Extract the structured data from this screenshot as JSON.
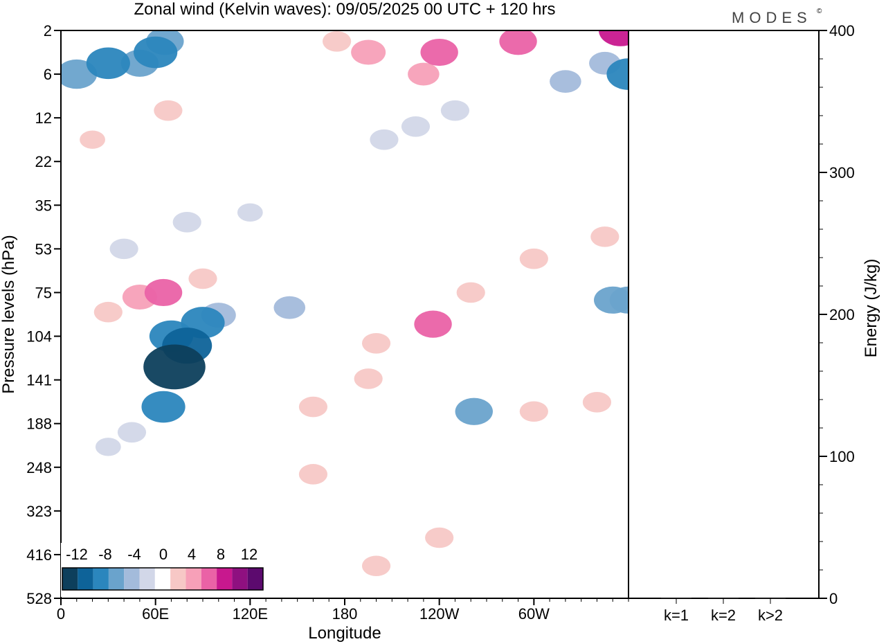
{
  "title": "Zonal wind (Kelvin waves):  09/05/2025  00 UTC  + 120 hrs",
  "brand": "MODES",
  "brand_mark": "©",
  "colors": {
    "neg": [
      "#0d3f5c",
      "#0e6399",
      "#2b86bd",
      "#6aa3cc",
      "#a3bbdb",
      "#d2d7e8"
    ],
    "zero": "#ffffff",
    "pos": [
      "#f7c8c6",
      "#f7a0b8",
      "#ea62a6",
      "#c8188e",
      "#8f1080",
      "#5c0a6e"
    ],
    "frame": "#000000"
  },
  "chart_data": [
    {
      "type": "heatmap",
      "title": "Zonal wind (Kelvin waves):  09/05/2025  00 UTC  + 120 hrs",
      "xlabel": "Longitude",
      "ylabel": "Pressure levels (hPa)",
      "x_ticks": [
        "0",
        "60E",
        "120E",
        "180",
        "120W",
        "60W"
      ],
      "x_tick_degrees": [
        0,
        60,
        120,
        180,
        240,
        300
      ],
      "xlim": [
        0,
        360
      ],
      "y_ticks": [
        "2",
        "6",
        "12",
        "22",
        "35",
        "53",
        "75",
        "104",
        "141",
        "188",
        "248",
        "323",
        "416",
        "528"
      ],
      "y_levels": [
        2,
        6,
        12,
        22,
        35,
        53,
        75,
        104,
        141,
        188,
        248,
        323,
        416,
        528
      ],
      "colorbar": {
        "tick_labels": [
          "-12",
          "-8",
          "-4",
          "0",
          "4",
          "8",
          "12"
        ],
        "levels": [
          -14,
          -12,
          -10,
          -8,
          -6,
          -4,
          -2,
          2,
          4,
          6,
          8,
          10,
          12,
          14
        ]
      },
      "features": [
        {
          "lon": 10,
          "level": 6,
          "value": -7
        },
        {
          "lon": 30,
          "level": 5,
          "value": -8
        },
        {
          "lon": 50,
          "level": 5,
          "value": -6
        },
        {
          "lon": 60,
          "level": 4,
          "value": -8
        },
        {
          "lon": 66,
          "level": 3,
          "value": -6
        },
        {
          "lon": 345,
          "level": 5,
          "value": -4
        },
        {
          "lon": 360,
          "level": 6,
          "value": -8
        },
        {
          "lon": 320,
          "level": 7,
          "value": -4
        },
        {
          "lon": 250,
          "level": 11,
          "value": -3
        },
        {
          "lon": 225,
          "level": 14,
          "value": -3
        },
        {
          "lon": 205,
          "level": 17,
          "value": -3
        },
        {
          "lon": 70,
          "level": 104,
          "value": -8
        },
        {
          "lon": 72,
          "level": 130,
          "value": -14
        },
        {
          "lon": 80,
          "level": 112,
          "value": -10
        },
        {
          "lon": 90,
          "level": 95,
          "value": -8
        },
        {
          "lon": 65,
          "level": 170,
          "value": -8
        },
        {
          "lon": 100,
          "level": 90,
          "value": -5
        },
        {
          "lon": 45,
          "level": 200,
          "value": -3
        },
        {
          "lon": 30,
          "level": 220,
          "value": -2
        },
        {
          "lon": 145,
          "level": 85,
          "value": -4
        },
        {
          "lon": 262,
          "level": 175,
          "value": -6
        },
        {
          "lon": 350,
          "level": 80,
          "value": -6
        },
        {
          "lon": 360,
          "level": 80,
          "value": -6
        },
        {
          "lon": 40,
          "level": 53,
          "value": -3
        },
        {
          "lon": 80,
          "level": 42,
          "value": -3
        },
        {
          "lon": 120,
          "level": 38,
          "value": -2
        },
        {
          "lon": 50,
          "level": 78,
          "value": 5
        },
        {
          "lon": 65,
          "level": 75,
          "value": 6
        },
        {
          "lon": 90,
          "level": 68,
          "value": 3
        },
        {
          "lon": 30,
          "level": 88,
          "value": 3
        },
        {
          "lon": 160,
          "level": 170,
          "value": 3
        },
        {
          "lon": 160,
          "level": 260,
          "value": 3
        },
        {
          "lon": 195,
          "level": 140,
          "value": 3
        },
        {
          "lon": 200,
          "level": 110,
          "value": 3
        },
        {
          "lon": 236,
          "level": 96,
          "value": 6
        },
        {
          "lon": 260,
          "level": 75,
          "value": 3
        },
        {
          "lon": 300,
          "level": 58,
          "value": 3
        },
        {
          "lon": 345,
          "level": 48,
          "value": 3
        },
        {
          "lon": 300,
          "level": 175,
          "value": 3
        },
        {
          "lon": 340,
          "level": 165,
          "value": 3
        },
        {
          "lon": 240,
          "level": 380,
          "value": 3
        },
        {
          "lon": 200,
          "level": 445,
          "value": 3
        },
        {
          "lon": 230,
          "level": 6,
          "value": 4
        },
        {
          "lon": 240,
          "level": 4,
          "value": 6
        },
        {
          "lon": 290,
          "level": 3,
          "value": 6
        },
        {
          "lon": 355,
          "level": 2,
          "value": 8
        },
        {
          "lon": 175,
          "level": 3,
          "value": 3
        },
        {
          "lon": 195,
          "level": 4,
          "value": 5
        },
        {
          "lon": 68,
          "level": 11,
          "value": 3
        },
        {
          "lon": 20,
          "level": 17,
          "value": 2
        }
      ]
    },
    {
      "type": "bar",
      "categories": [
        "k=1",
        "k=2",
        "k>2"
      ],
      "values": [
        0.5,
        0.3,
        0.2
      ],
      "ylabel": "Energy (J/kg)",
      "y_ticks": [
        "0",
        "100",
        "200",
        "300",
        "400"
      ],
      "ylim": [
        0,
        400
      ]
    }
  ]
}
